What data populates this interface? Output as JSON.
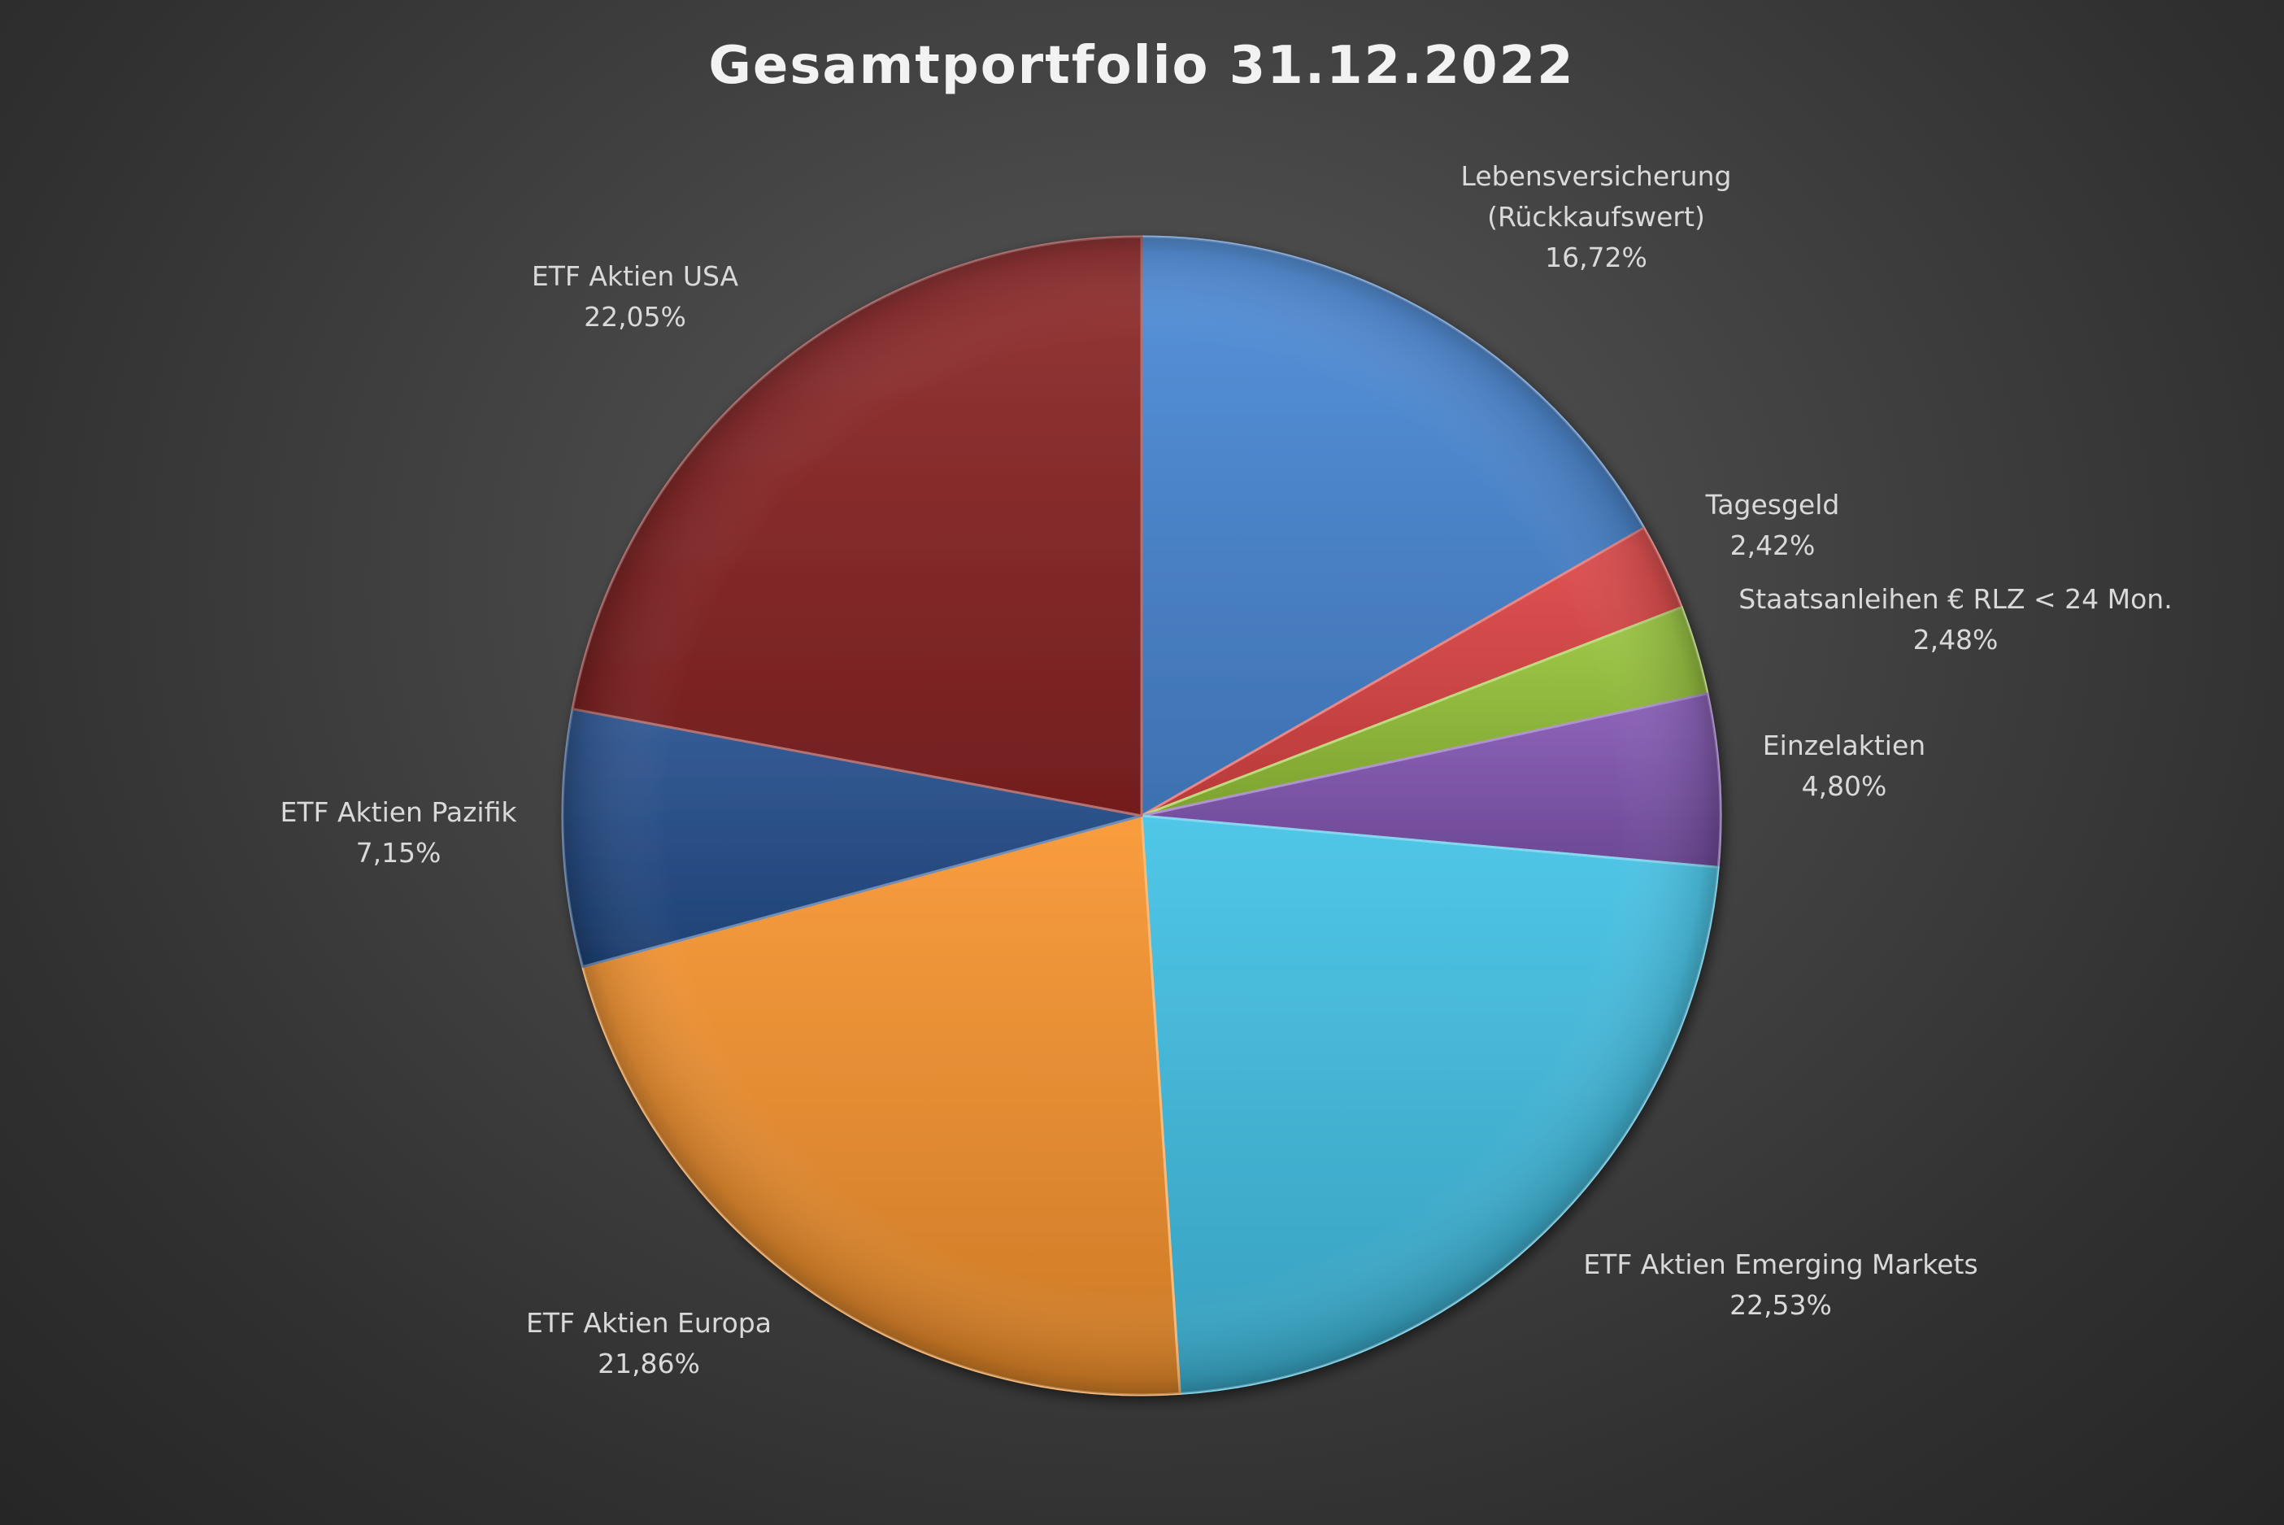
{
  "chart_data": {
    "type": "pie",
    "title": "Gesamtportfolio 31.12.2022",
    "start_angle_deg": 0,
    "direction": "clockwise",
    "slices": [
      {
        "label": [
          "Lebensversicherung",
          "(Rückkaufswert)"
        ],
        "value": 16.72,
        "value_label": "16,72%",
        "color": "#4a8ad8"
      },
      {
        "label": [
          "Tagesgeld"
        ],
        "value": 2.42,
        "value_label": "2,42%",
        "color": "#e04545"
      },
      {
        "label": [
          "Staatsanleihen € RLZ < 24 Mon."
        ],
        "value": 2.48,
        "value_label": "2,48%",
        "color": "#99c63a"
      },
      {
        "label": [
          "Einzelaktien"
        ],
        "value": 4.8,
        "value_label": "4,80%",
        "color": "#8458b5"
      },
      {
        "label": [
          "ETF Aktien Emerging Markets"
        ],
        "value": 22.53,
        "value_label": "22,53%",
        "color": "#42c2e6"
      },
      {
        "label": [
          "ETF Aktien Europa"
        ],
        "value": 21.86,
        "value_label": "21,86%",
        "color": "#f9952e"
      },
      {
        "label": [
          "ETF Aktien Pazifik"
        ],
        "value": 7.15,
        "value_label": "7,15%",
        "color": "#244f8e"
      },
      {
        "label": [
          "ETF Aktien USA"
        ],
        "value": 22.05,
        "value_label": "22,05%",
        "color": "#8c2424"
      }
    ]
  }
}
